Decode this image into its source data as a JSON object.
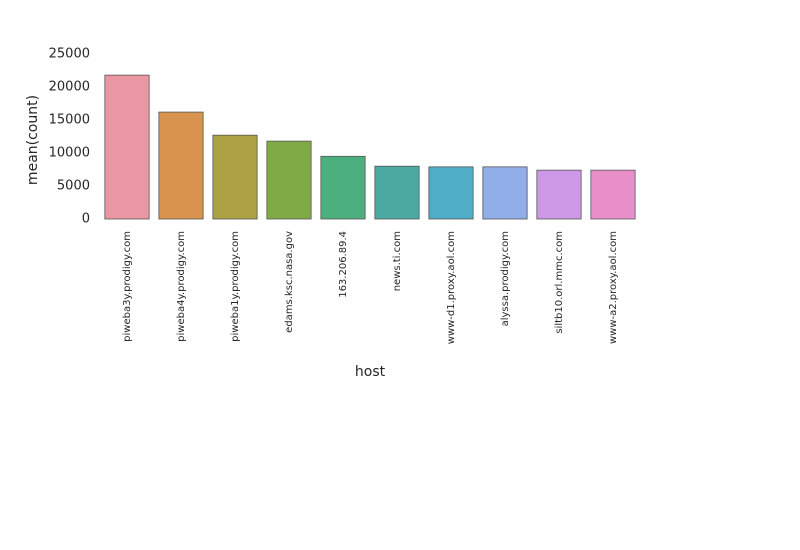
{
  "chart_data": {
    "type": "bar",
    "xlabel": "host",
    "ylabel": "mean(count)",
    "categories": [
      "piweba3y.prodigy.com",
      "piweba4y.prodigy.com",
      "piweba1y.prodigy.com",
      "edams.ksc.nasa.gov",
      "163.206.89.4",
      "news.ti.com",
      "www-d1.proxy.aol.com",
      "alyssa.prodigy.com",
      "siltb10.orl.mmc.com",
      "www-a2.proxy.aol.com"
    ],
    "values": [
      21800,
      16200,
      12700,
      11800,
      9500,
      8000,
      7900,
      7900,
      7400,
      7400
    ],
    "colors": [
      "#ea96a3",
      "#d8944f",
      "#aca145",
      "#7fab47",
      "#4bb07d",
      "#4baba2",
      "#4fadc7",
      "#92aee8",
      "#cd98e6",
      "#e88fca"
    ],
    "ylim": [
      0,
      25000
    ],
    "yticks": [
      0,
      5000,
      10000,
      15000,
      20000,
      25000
    ],
    "grid": false
  }
}
